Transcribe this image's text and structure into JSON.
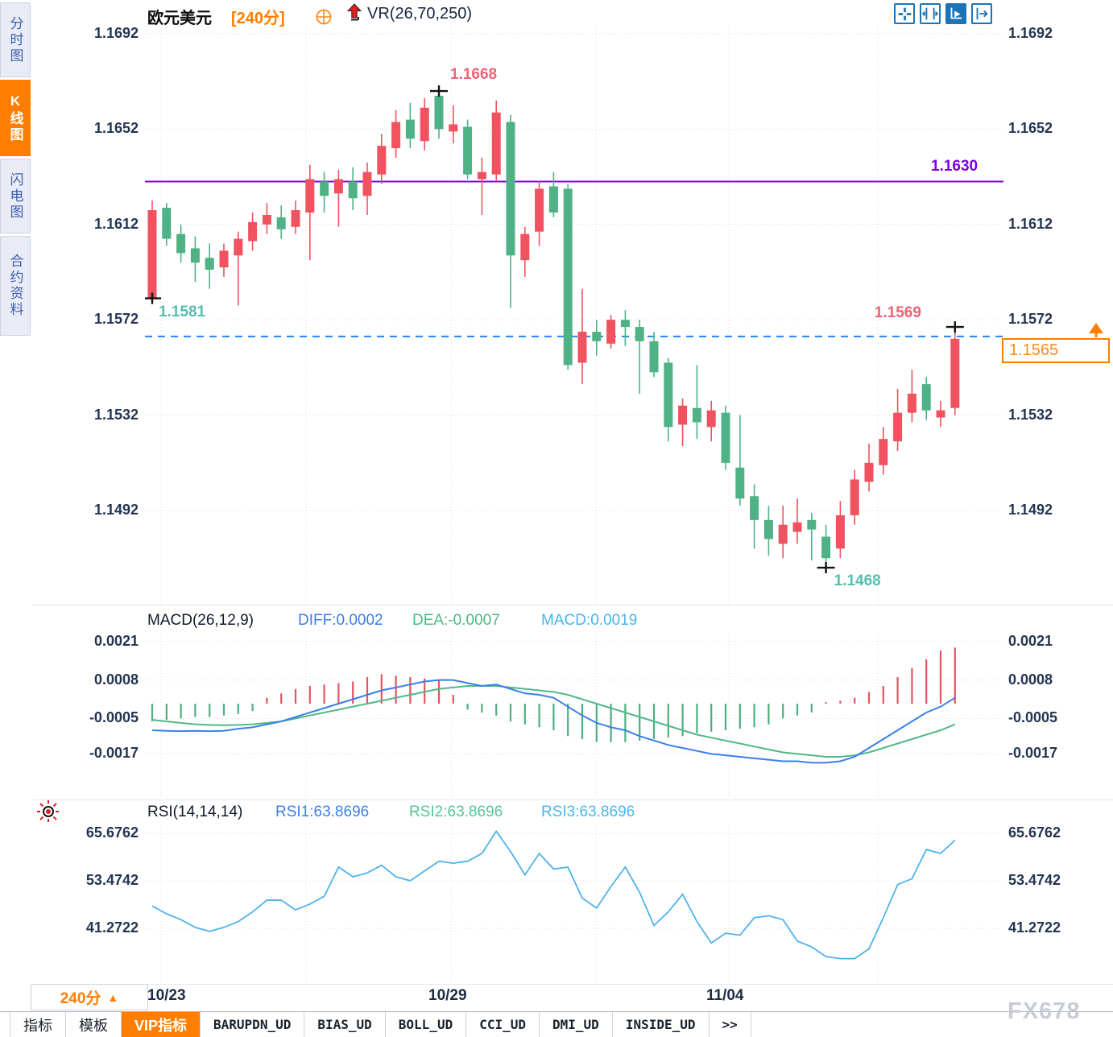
{
  "app": {
    "symbol": "欧元美元",
    "period_tag": "[240分]",
    "overlay_indicator": "VR(26,70,250)"
  },
  "sidebar": {
    "items": [
      {
        "label": "分时图",
        "active": false
      },
      {
        "label": "K线图",
        "active": true
      },
      {
        "label": "闪电图",
        "active": false
      },
      {
        "label": "合约资料",
        "active": false
      }
    ]
  },
  "toolbar_icons": [
    "crosshair-pan",
    "axis-scale",
    "auto-scale",
    "pan-right"
  ],
  "main_chart": {
    "y_ticks": [
      "1.1692",
      "1.1652",
      "1.1612",
      "1.1572",
      "1.1532",
      "1.1492"
    ],
    "resistance_line": {
      "label": "1.1630",
      "value": 1.163
    },
    "current_price_line": {
      "label": "1.1565",
      "value": 1.1565
    },
    "price_box": {
      "label": "1.1565"
    },
    "annotations": [
      {
        "label": "1.1581",
        "candle": 0,
        "at": "low",
        "tone": "low"
      },
      {
        "label": "1.1668",
        "candle": 20,
        "at": "high",
        "tone": "high"
      },
      {
        "label": "1.1468",
        "candle": 47,
        "at": "low",
        "tone": "low"
      },
      {
        "label": "1.1569",
        "candle": 56,
        "at": "high",
        "tone": "high"
      }
    ]
  },
  "macd_panel": {
    "title": "MACD(26,12,9)",
    "diff_label": "DIFF:0.0002",
    "dea_label": "DEA:-0.0007",
    "macd_label": "MACD:0.0019",
    "y_ticks": [
      "0.0021",
      "0.0008",
      "-0.0005",
      "-0.0017"
    ]
  },
  "rsi_panel": {
    "title": "RSI(14,14,14)",
    "rsi1_label": "RSI1:63.8696",
    "rsi2_label": "RSI2:63.8696",
    "rsi3_label": "RSI3:63.8696",
    "y_ticks": [
      "65.6762",
      "53.4742",
      "41.2722"
    ]
  },
  "footer": {
    "period_label": "240分",
    "period_arrow": "▲",
    "x_labels": [
      "10/23",
      "10/29",
      "11/04"
    ],
    "tabs": [
      {
        "label": "指标",
        "active": false,
        "mono": false
      },
      {
        "label": "模板",
        "active": false,
        "mono": false
      },
      {
        "label": "VIP指标",
        "active": true,
        "mono": false
      },
      {
        "label": "BARUPDN_UD",
        "active": false,
        "mono": true
      },
      {
        "label": "BIAS_UD",
        "active": false,
        "mono": true
      },
      {
        "label": "BOLL_UD",
        "active": false,
        "mono": true
      },
      {
        "label": "CCI_UD",
        "active": false,
        "mono": true
      },
      {
        "label": "DMI_UD",
        "active": false,
        "mono": true
      },
      {
        "label": "INSIDE_UD",
        "active": false,
        "mono": true
      },
      {
        "label": ">>",
        "active": false,
        "mono": true
      }
    ]
  },
  "watermark": "FX678",
  "colors": {
    "accent": "#ff7e00",
    "candle_up": "#f0525f",
    "candle_down": "#4fb286",
    "resistance": "#7a00e6",
    "current": "#1e86f0",
    "diff": "#3a7fe8",
    "dea": "#52b987",
    "macd_text": "#45b7e8",
    "rsi1": "#3a7fe8",
    "rsi2": "#52c794",
    "rsi3": "#49b8ea",
    "annotation_high": "#ef6375",
    "annotation_low": "#54c0ae"
  },
  "chart_data": {
    "type": "candlestick",
    "symbol": "欧元美元",
    "period": "240分",
    "x_labels": [
      "10/23",
      "10/29",
      "11/04"
    ],
    "price_ticks": [
      1.1692,
      1.1652,
      1.1612,
      1.1572,
      1.1532,
      1.1492
    ],
    "levels": {
      "resistance": 1.163,
      "current": 1.1565
    },
    "extremes": {
      "period_high": 1.1668,
      "period_low": 1.1468,
      "left_low": 1.1581,
      "latest_high": 1.1569
    },
    "candles": [
      [
        1.1581,
        1.1622,
        1.1581,
        1.1618
      ],
      [
        1.1619,
        1.1621,
        1.1603,
        1.1606
      ],
      [
        1.1608,
        1.1612,
        1.1596,
        1.16
      ],
      [
        1.1602,
        1.1607,
        1.1588,
        1.1596
      ],
      [
        1.1598,
        1.1604,
        1.1585,
        1.1593
      ],
      [
        1.1594,
        1.1604,
        1.159,
        1.1601
      ],
      [
        1.1599,
        1.1609,
        1.1578,
        1.1606
      ],
      [
        1.1605,
        1.1617,
        1.1601,
        1.1613
      ],
      [
        1.1612,
        1.1621,
        1.1608,
        1.1616
      ],
      [
        1.1615,
        1.162,
        1.1606,
        1.161
      ],
      [
        1.1611,
        1.1622,
        1.1608,
        1.1618
      ],
      [
        1.1617,
        1.1637,
        1.1597,
        1.1631
      ],
      [
        1.163,
        1.1634,
        1.1617,
        1.1624
      ],
      [
        1.1625,
        1.1635,
        1.1611,
        1.1631
      ],
      [
        1.163,
        1.1636,
        1.1618,
        1.1623
      ],
      [
        1.1624,
        1.1638,
        1.1616,
        1.1634
      ],
      [
        1.1633,
        1.165,
        1.1629,
        1.1645
      ],
      [
        1.1644,
        1.166,
        1.164,
        1.1655
      ],
      [
        1.1656,
        1.1663,
        1.1644,
        1.1648
      ],
      [
        1.1647,
        1.1665,
        1.1643,
        1.1661
      ],
      [
        1.1666,
        1.1668,
        1.1648,
        1.1652
      ],
      [
        1.1651,
        1.1662,
        1.1646,
        1.1654
      ],
      [
        1.1653,
        1.1656,
        1.1631,
        1.1633
      ],
      [
        1.1631,
        1.164,
        1.1616,
        1.1634
      ],
      [
        1.1633,
        1.1664,
        1.163,
        1.1659
      ],
      [
        1.1655,
        1.1658,
        1.1577,
        1.1599
      ],
      [
        1.1597,
        1.1611,
        1.159,
        1.1608
      ],
      [
        1.1609,
        1.163,
        1.1603,
        1.1627
      ],
      [
        1.1628,
        1.1634,
        1.1615,
        1.1617
      ],
      [
        1.1627,
        1.1629,
        1.1551,
        1.1553
      ],
      [
        1.1554,
        1.1585,
        1.1545,
        1.1567
      ],
      [
        1.1567,
        1.1572,
        1.1557,
        1.1563
      ],
      [
        1.1562,
        1.1574,
        1.156,
        1.1572
      ],
      [
        1.1572,
        1.1576,
        1.1561,
        1.1569
      ],
      [
        1.1569,
        1.1572,
        1.1541,
        1.1563
      ],
      [
        1.1563,
        1.1567,
        1.1548,
        1.155
      ],
      [
        1.1554,
        1.1556,
        1.1521,
        1.1527
      ],
      [
        1.1528,
        1.1539,
        1.1519,
        1.1536
      ],
      [
        1.1535,
        1.1553,
        1.1522,
        1.1529
      ],
      [
        1.1527,
        1.1538,
        1.1521,
        1.1534
      ],
      [
        1.1533,
        1.1536,
        1.1509,
        1.1512
      ],
      [
        1.151,
        1.1532,
        1.1494,
        1.1497
      ],
      [
        1.1498,
        1.1503,
        1.1476,
        1.1488
      ],
      [
        1.1488,
        1.1494,
        1.1473,
        1.148
      ],
      [
        1.1478,
        1.1494,
        1.1472,
        1.1486
      ],
      [
        1.1483,
        1.1497,
        1.1478,
        1.1487
      ],
      [
        1.1488,
        1.1491,
        1.1471,
        1.1484
      ],
      [
        1.1481,
        1.1486,
        1.1468,
        1.1472
      ],
      [
        1.1476,
        1.1496,
        1.1472,
        1.149
      ],
      [
        1.149,
        1.1509,
        1.1486,
        1.1505
      ],
      [
        1.1504,
        1.152,
        1.15,
        1.1512
      ],
      [
        1.1511,
        1.1527,
        1.1507,
        1.1522
      ],
      [
        1.1521,
        1.1543,
        1.1517,
        1.1533
      ],
      [
        1.1533,
        1.1551,
        1.1529,
        1.1541
      ],
      [
        1.1545,
        1.1548,
        1.153,
        1.1534
      ],
      [
        1.1531,
        1.1538,
        1.1527,
        1.1534
      ],
      [
        1.1535,
        1.1569,
        1.1532,
        1.1564
      ]
    ],
    "macd": {
      "params": "26,12,9",
      "diff_last": 0.0002,
      "dea_last": -0.0007,
      "macd_last": 0.0019,
      "ticks": [
        0.0021,
        0.0008,
        -0.0005,
        -0.0017
      ],
      "hist": [
        -0.0006,
        -0.00055,
        -0.0005,
        -0.00045,
        -0.00045,
        -0.0004,
        -0.00035,
        -0.00025,
        0.0002,
        0.00035,
        0.0005,
        0.0006,
        0.00065,
        0.0007,
        0.00075,
        0.0009,
        0.001,
        0.00095,
        0.0009,
        0.00085,
        0.0008,
        0.0003,
        -0.0002,
        -0.0003,
        -0.0004,
        -0.0006,
        -0.0007,
        -0.0008,
        -0.0009,
        -0.0011,
        -0.0012,
        -0.0013,
        -0.0013,
        -0.0013,
        -0.00125,
        -0.0012,
        -0.00115,
        -0.0011,
        -0.001,
        -0.00095,
        -0.0009,
        -0.00085,
        -0.0008,
        -0.0007,
        -0.0005,
        -0.0004,
        -0.0003,
        5e-05,
        0.0001,
        0.0002,
        0.0004,
        0.0006,
        0.0009,
        0.0012,
        0.0015,
        0.0018,
        0.0019
      ],
      "diff": [
        -0.0009,
        -0.00092,
        -0.00093,
        -0.00092,
        -0.00093,
        -0.00092,
        -0.00085,
        -0.0008,
        -0.0007,
        -0.0006,
        -0.00045,
        -0.0003,
        -0.00015,
        0,
        0.00015,
        0.0003,
        0.00045,
        0.00055,
        0.00065,
        0.00075,
        0.0008,
        0.0008,
        0.0007,
        0.0006,
        0.00065,
        0.0005,
        0.00035,
        0.0003,
        0.0002,
        -0.0001,
        -0.0004,
        -0.00065,
        -0.0008,
        -0.0009,
        -0.0011,
        -0.00125,
        -0.0014,
        -0.0015,
        -0.0016,
        -0.0017,
        -0.00175,
        -0.0018,
        -0.00185,
        -0.0019,
        -0.00195,
        -0.00195,
        -0.002,
        -0.002,
        -0.00195,
        -0.0018,
        -0.0015,
        -0.0012,
        -0.0009,
        -0.0006,
        -0.0003,
        -0.0001,
        0.0002
      ],
      "dea": [
        -0.00055,
        -0.0006,
        -0.00065,
        -0.0007,
        -0.00072,
        -0.00073,
        -0.00072,
        -0.0007,
        -0.00065,
        -0.0006,
        -0.0005,
        -0.0004,
        -0.0003,
        -0.0002,
        -0.0001,
        0,
        0.0001,
        0.0002,
        0.0003,
        0.0004,
        0.0005,
        0.00055,
        0.0006,
        0.0006,
        0.0006,
        0.00055,
        0.0005,
        0.00045,
        0.0004,
        0.0003,
        0.00015,
        0,
        -0.00015,
        -0.0003,
        -0.00045,
        -0.0006,
        -0.00075,
        -0.0009,
        -0.00105,
        -0.00115,
        -0.00125,
        -0.00135,
        -0.00145,
        -0.00155,
        -0.00165,
        -0.0017,
        -0.00175,
        -0.0018,
        -0.0018,
        -0.00175,
        -0.00165,
        -0.0015,
        -0.00135,
        -0.0012,
        -0.00105,
        -0.0009,
        -0.0007
      ]
    },
    "rsi": {
      "params": "14,14,14",
      "ticks": [
        65.6762,
        53.4742,
        41.2722
      ],
      "last": 63.8696,
      "values": [
        47,
        45,
        43.5,
        41.5,
        40.5,
        41.5,
        43,
        45.5,
        48.5,
        48.5,
        46,
        47.5,
        49.5,
        57,
        54.5,
        55.5,
        57.5,
        54.5,
        53.5,
        56,
        58.5,
        58,
        58.5,
        60.5,
        66.2,
        61,
        55,
        60.5,
        56.5,
        57,
        49,
        46.5,
        52,
        57,
        50.5,
        42,
        45.5,
        50,
        43,
        37.5,
        40,
        39.5,
        44,
        44.5,
        43.5,
        38,
        36.5,
        34,
        33.5,
        33.5,
        36,
        44,
        52.5,
        54,
        61.5,
        60.5,
        63.9
      ]
    }
  }
}
